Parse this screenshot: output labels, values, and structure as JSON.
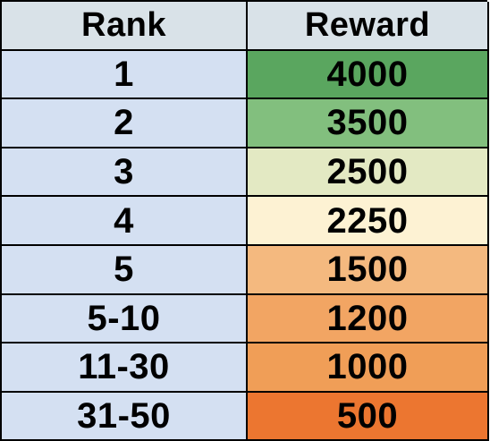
{
  "table": {
    "headers": [
      "Rank",
      "Reward"
    ],
    "rows": [
      {
        "rank": "1",
        "reward": "4000",
        "color": "#5aa65f"
      },
      {
        "rank": "2",
        "reward": "3500",
        "color": "#82bf7e"
      },
      {
        "rank": "3",
        "reward": "2500",
        "color": "#e3e9c3"
      },
      {
        "rank": "4",
        "reward": "2250",
        "color": "#fdf2d3"
      },
      {
        "rank": "5",
        "reward": "1500",
        "color": "#f4b97f"
      },
      {
        "rank": "5-10",
        "reward": "1200",
        "color": "#f2a563"
      },
      {
        "rank": "11-30",
        "reward": "1000",
        "color": "#f09e57"
      },
      {
        "rank": "31-50",
        "reward": "500",
        "color": "#ec7630"
      }
    ]
  }
}
